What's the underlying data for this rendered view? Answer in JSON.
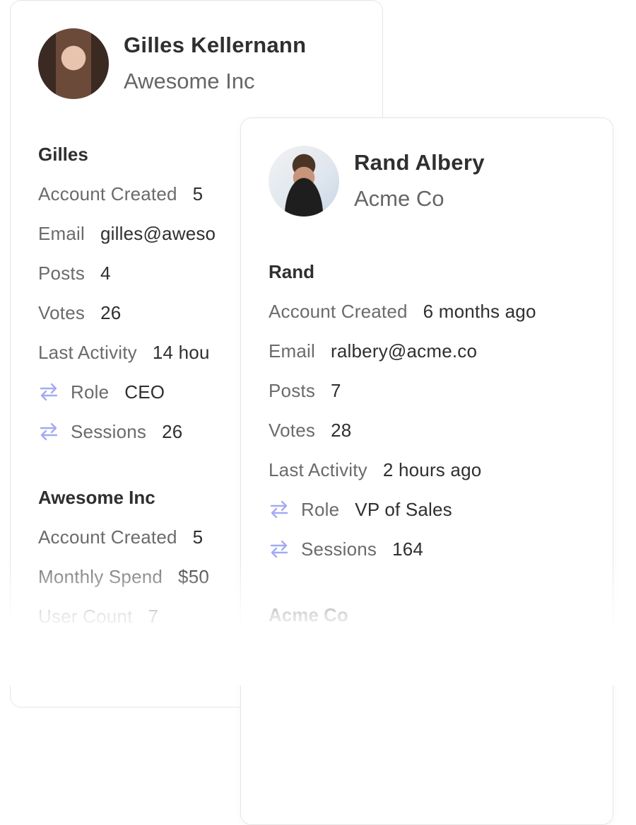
{
  "cards": [
    {
      "name": "Gilles Kellernann",
      "company": "Awesome Inc",
      "user_section": {
        "title": "Gilles",
        "rows": [
          {
            "label": "Account Created",
            "value": "5"
          },
          {
            "label": "Email",
            "value": "gilles@aweso"
          },
          {
            "label": "Posts",
            "value": "4"
          },
          {
            "label": "Votes",
            "value": "26"
          },
          {
            "label": "Last Activity",
            "value": "14 hou"
          },
          {
            "label": "Role",
            "value": "CEO",
            "icon": "sync-arrows-icon"
          },
          {
            "label": "Sessions",
            "value": "26",
            "icon": "sync-arrows-icon"
          }
        ]
      },
      "company_section": {
        "title": "Awesome Inc",
        "rows": [
          {
            "label": "Account Created",
            "value": "5"
          },
          {
            "label": "Monthly Spend",
            "value": "$50"
          },
          {
            "label": "User Count",
            "value": "7"
          }
        ]
      }
    },
    {
      "name": "Rand Albery",
      "company": "Acme Co",
      "user_section": {
        "title": "Rand",
        "rows": [
          {
            "label": "Account Created",
            "value": "6 months ago"
          },
          {
            "label": "Email",
            "value": "ralbery@acme.co"
          },
          {
            "label": "Posts",
            "value": "7"
          },
          {
            "label": "Votes",
            "value": "28"
          },
          {
            "label": "Last Activity",
            "value": "2 hours ago"
          },
          {
            "label": "Role",
            "value": "VP of Sales",
            "icon": "sync-arrows-icon"
          },
          {
            "label": "Sessions",
            "value": "164",
            "icon": "sync-arrows-icon"
          }
        ]
      },
      "company_section": {
        "title": "Acme Co"
      }
    }
  ],
  "colors": {
    "icon": "#a3aaf2",
    "label": "#6b6b6b",
    "value": "#2f2f2f"
  }
}
